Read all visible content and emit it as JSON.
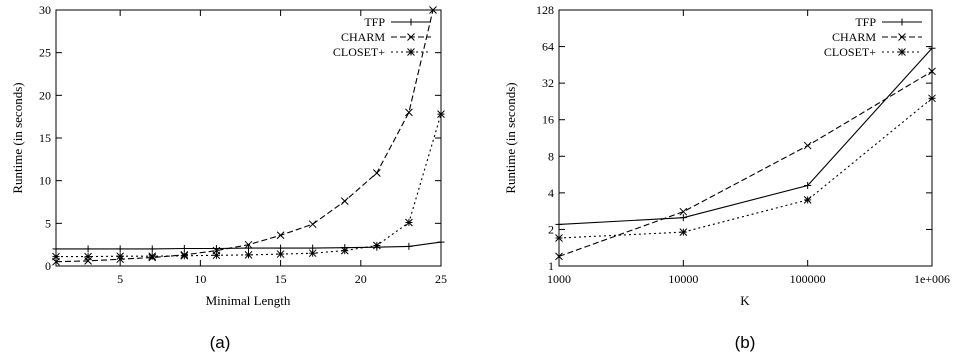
{
  "chart_data": [
    {
      "type": "line",
      "panel_label": "(a)",
      "title": "",
      "xlabel": "Minimal Length",
      "ylabel": "Runtime (in seconds)",
      "xlim": [
        1,
        25
      ],
      "ylim": [
        0,
        30
      ],
      "xscale": "linear",
      "yscale": "linear",
      "xticks": [
        5,
        10,
        15,
        20,
        25
      ],
      "yticks": [
        0,
        5,
        10,
        15,
        20,
        25,
        30
      ],
      "legend_position": "top-right",
      "grid": false,
      "series": [
        {
          "name": "TFP",
          "marker": "plus",
          "dash": "solid",
          "x": [
            1,
            3,
            5,
            7,
            9,
            11,
            13,
            15,
            17,
            19,
            21,
            23,
            25
          ],
          "y": [
            2.0,
            2.0,
            2.0,
            2.0,
            2.05,
            2.05,
            2.1,
            2.1,
            2.1,
            2.15,
            2.2,
            2.3,
            2.8
          ]
        },
        {
          "name": "CHARM",
          "marker": "cross",
          "dash": "dashed",
          "x": [
            1,
            3,
            5,
            7,
            9,
            11,
            13,
            15,
            17,
            19,
            21,
            23,
            24.5
          ],
          "y": [
            0.5,
            0.6,
            0.8,
            1.0,
            1.3,
            1.8,
            2.5,
            3.6,
            4.9,
            7.6,
            10.9,
            18.0,
            30.0
          ]
        },
        {
          "name": "CLOSET+",
          "marker": "star",
          "dash": "dotted",
          "x": [
            1,
            3,
            5,
            7,
            9,
            11,
            13,
            15,
            17,
            19,
            21,
            23,
            25
          ],
          "y": [
            1.1,
            1.1,
            1.15,
            1.15,
            1.2,
            1.25,
            1.3,
            1.4,
            1.5,
            1.8,
            2.4,
            5.1,
            17.8
          ]
        }
      ]
    },
    {
      "type": "line",
      "panel_label": "(b)",
      "title": "",
      "xlabel": "K",
      "ylabel": "Runtime (in seconds)",
      "xlim": [
        1000,
        1000000
      ],
      "ylim": [
        1,
        128
      ],
      "xscale": "log",
      "yscale": "log2",
      "xticks": [
        1000,
        10000,
        100000,
        1000000
      ],
      "xtick_labels": [
        "1000",
        "10000",
        "100000",
        "1e+006"
      ],
      "yticks": [
        1,
        2,
        4,
        8,
        16,
        32,
        64,
        128
      ],
      "legend_position": "top-right",
      "grid": false,
      "series": [
        {
          "name": "TFP",
          "marker": "plus",
          "dash": "solid",
          "x": [
            1000,
            10000,
            100000,
            1000000
          ],
          "y": [
            2.2,
            2.5,
            4.6,
            62
          ]
        },
        {
          "name": "CHARM",
          "marker": "cross",
          "dash": "dashed",
          "x": [
            1000,
            10000,
            100000,
            1000000
          ],
          "y": [
            1.2,
            2.8,
            9.8,
            40
          ]
        },
        {
          "name": "CLOSET+",
          "marker": "star",
          "dash": "dotted",
          "x": [
            1000,
            10000,
            100000,
            1000000
          ],
          "y": [
            1.7,
            1.9,
            3.5,
            24
          ]
        }
      ]
    }
  ]
}
